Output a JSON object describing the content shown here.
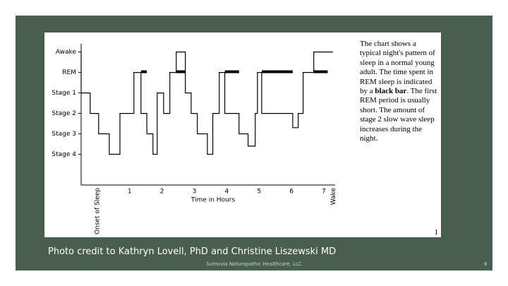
{
  "slide": {
    "caption": "Photo credit to Kathryn Lovell, PhD and Christine Liszewski MD",
    "footer": "Sumovia Naturopathic Healthcare, LLC",
    "page_number": "8",
    "figure_number": "1",
    "description": [
      "The chart shows a typical night's pattern of sleep in a normal young adult.  The time spent in REM sleep is indicated by a ",
      "black bar",
      ". The first REM period is usually short. The amount of stage 2 slow wave sleep increases during the night."
    ]
  },
  "chart_data": {
    "type": "step",
    "xlabel": "Time in Hours",
    "color": "#000000",
    "rem_color": "#000000",
    "grid": false,
    "x": [
      -0.5,
      -0.22,
      0.04,
      0.37,
      0.7,
      1.13,
      1.35,
      1.53,
      1.72,
      1.85,
      2.05,
      2.24,
      2.44,
      2.72,
      2.9,
      3.09,
      3.4,
      3.57,
      3.77,
      3.94,
      4.38,
      4.66,
      4.88,
      4.95,
      5.08,
      6.04,
      6.21,
      6.36,
      6.69,
      7.12,
      7.28
    ],
    "values": [
      5,
      3,
      2,
      1,
      0,
      2,
      4,
      2,
      1,
      0,
      3,
      2,
      4,
      5,
      3,
      2,
      1,
      0,
      2,
      4,
      2,
      1,
      0.4,
      2,
      4,
      2,
      1.3,
      2,
      4,
      5,
      5
    ],
    "xlim": [
      -0.5,
      7.35
    ],
    "ylim": [
      -1.5,
      5.4
    ],
    "xticks": [
      {
        "value": 0,
        "label": "Onset of Sleep"
      },
      1,
      2,
      3,
      4,
      5,
      6,
      7,
      {
        "value": 7.3,
        "label": "Wake"
      }
    ],
    "yticks": [
      {
        "value": 5,
        "label": "Awake"
      },
      {
        "value": 4,
        "label": "REM"
      },
      {
        "value": 3,
        "label": "Stage 1"
      },
      {
        "value": 2,
        "label": "Stage 2"
      },
      {
        "value": 1,
        "label": "Stage 3"
      },
      {
        "value": 0,
        "label": "Stage 4"
      }
    ]
  }
}
